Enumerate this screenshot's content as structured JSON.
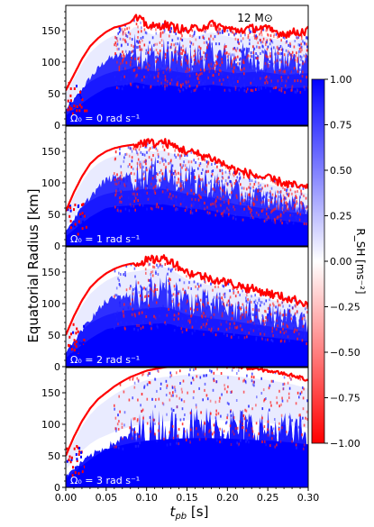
{
  "figure": {
    "mass_label": "12 M⊙",
    "ylabel": "Equatorial Radius [km]",
    "xlabel": "t_pb [s]",
    "colorbar_label": "R_SH [ms⁻²]"
  },
  "chart_data": [
    {
      "type": "heatmap",
      "panel_label": "Ω₀ = 0 rad s⁻¹",
      "x_range": [
        0.0,
        0.3
      ],
      "y_range": [
        0,
        190
      ],
      "shock_radius": {
        "t": [
          0.0,
          0.01,
          0.02,
          0.03,
          0.04,
          0.05,
          0.06,
          0.07,
          0.08,
          0.085,
          0.09,
          0.1,
          0.11,
          0.12,
          0.15,
          0.18,
          0.21,
          0.24,
          0.27,
          0.3
        ],
        "r": [
          55,
          80,
          105,
          125,
          138,
          148,
          155,
          158,
          163,
          170,
          168,
          160,
          155,
          160,
          150,
          160,
          150,
          155,
          145,
          150
        ]
      }
    },
    {
      "type": "heatmap",
      "panel_label": "Ω₀ = 1 rad s⁻¹",
      "x_range": [
        0.0,
        0.3
      ],
      "y_range": [
        0,
        190
      ],
      "shock_radius": {
        "t": [
          0.0,
          0.01,
          0.02,
          0.03,
          0.04,
          0.05,
          0.06,
          0.07,
          0.08,
          0.09,
          0.1,
          0.11,
          0.12,
          0.13,
          0.15,
          0.18,
          0.21,
          0.24,
          0.27,
          0.3
        ],
        "r": [
          55,
          85,
          110,
          130,
          142,
          150,
          155,
          158,
          160,
          162,
          165,
          162,
          165,
          160,
          150,
          140,
          120,
          110,
          100,
          90
        ]
      }
    },
    {
      "type": "heatmap",
      "panel_label": "Ω₀ = 2 rad s⁻¹",
      "x_range": [
        0.0,
        0.3
      ],
      "y_range": [
        0,
        190
      ],
      "shock_radius": {
        "t": [
          0.0,
          0.01,
          0.02,
          0.03,
          0.04,
          0.05,
          0.06,
          0.07,
          0.08,
          0.09,
          0.1,
          0.11,
          0.12,
          0.13,
          0.15,
          0.18,
          0.21,
          0.24,
          0.27,
          0.3
        ],
        "r": [
          50,
          80,
          105,
          125,
          138,
          148,
          155,
          160,
          163,
          165,
          168,
          170,
          172,
          168,
          150,
          140,
          130,
          120,
          110,
          100
        ]
      }
    },
    {
      "type": "heatmap",
      "panel_label": "Ω₀ = 3 rad s⁻¹",
      "x_range": [
        0.0,
        0.3
      ],
      "y_range": [
        0,
        190
      ],
      "shock_radius": {
        "t": [
          0.0,
          0.01,
          0.02,
          0.03,
          0.04,
          0.05,
          0.06,
          0.07,
          0.08,
          0.09,
          0.1,
          0.12,
          0.14,
          0.16,
          0.18,
          0.2,
          0.22,
          0.25,
          0.28,
          0.3
        ],
        "r": [
          50,
          80,
          105,
          125,
          140,
          150,
          160,
          168,
          175,
          180,
          185,
          190,
          193,
          195,
          195,
          193,
          190,
          185,
          178,
          170
        ]
      }
    }
  ],
  "axes": {
    "y_ticks": [
      "0",
      "50",
      "100",
      "150"
    ],
    "y_tick_values": [
      0,
      50,
      100,
      150
    ],
    "x_ticks": [
      "0.00",
      "0.05",
      "0.10",
      "0.15",
      "0.20",
      "0.25",
      "0.30"
    ],
    "x_tick_values": [
      0.0,
      0.05,
      0.1,
      0.15,
      0.2,
      0.25,
      0.3
    ]
  },
  "colorbar": {
    "range": [
      -1.0,
      1.0
    ],
    "ticks": [
      "1.00",
      "0.75",
      "0.50",
      "0.25",
      "0.00",
      "−0.25",
      "−0.50",
      "−0.75",
      "−1.00"
    ],
    "tick_values": [
      1.0,
      0.75,
      0.5,
      0.25,
      0.0,
      -0.25,
      -0.5,
      -0.75,
      -1.0
    ],
    "colors": {
      "positive": "#0000ff",
      "zero": "#ffffff",
      "negative": "#ff0000"
    }
  }
}
